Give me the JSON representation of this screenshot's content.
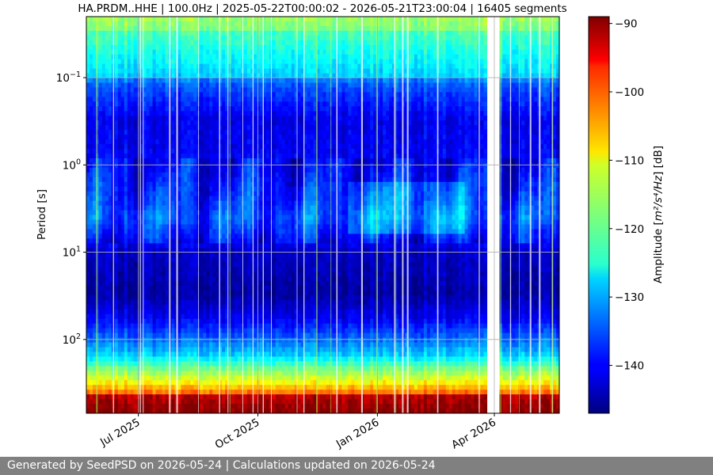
{
  "chart_data": {
    "type": "heatmap",
    "title": "HA.PRDM..HHE | 100.0Hz | 2025-05-22T00:00:02 - 2026-05-21T23:00:04 | 16405 segments",
    "xlabel": "",
    "ylabel": "Period [s]",
    "y_scale": "log",
    "y_inverted": true,
    "ylim": [
      0.02,
      700
    ],
    "xlim": [
      "2025-05-22",
      "2026-05-21"
    ],
    "x_ticks": [
      {
        "date": "2025-07-01",
        "label": "Jul 2025"
      },
      {
        "date": "2025-10-01",
        "label": "Oct 2025"
      },
      {
        "date": "2026-01-01",
        "label": "Jan 2026"
      },
      {
        "date": "2026-04-01",
        "label": "Apr 2026"
      }
    ],
    "y_ticks": [
      {
        "value": 0.1,
        "base": "10",
        "exp": "−1"
      },
      {
        "value": 1,
        "base": "10",
        "exp": "0"
      },
      {
        "value": 10,
        "base": "10",
        "exp": "1"
      },
      {
        "value": 100,
        "base": "10",
        "exp": "2"
      }
    ],
    "colorbar": {
      "label_prefix": "Amplitude [",
      "label_unit": "m²/s⁴/Hz",
      "label_suffix": "] [dB]",
      "range": [
        -147,
        -89
      ],
      "ticks": [
        {
          "value": -90,
          "label": "−90"
        },
        {
          "value": -100,
          "label": "−100"
        },
        {
          "value": -110,
          "label": "−110"
        },
        {
          "value": -120,
          "label": "−120"
        },
        {
          "value": -130,
          "label": "−130"
        },
        {
          "value": -140,
          "label": "−140"
        }
      ],
      "colormap": "jet"
    },
    "data_gap": {
      "start": "2026-03-27",
      "end": "2026-04-03"
    },
    "grid": true
  },
  "footer": {
    "text": "Generated by SeedPSD on 2026-05-24 | Calculations updated on 2026-05-24"
  }
}
